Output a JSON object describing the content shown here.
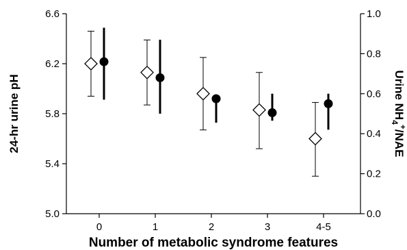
{
  "chart_data": {
    "type": "scatter",
    "xlabel": "Number of metabolic syndrome features",
    "ylabel": "24-hr urine pH",
    "ylabel2_parts": [
      "Urine NH",
      "4",
      "+",
      "/NAE"
    ],
    "categories": [
      "0",
      "1",
      "2",
      "3",
      "4-5"
    ],
    "ylim": [
      5.0,
      6.6
    ],
    "yticks": [
      "5.0",
      "5.4",
      "5.8",
      "6.2",
      "6.6"
    ],
    "y2lim": [
      0.0,
      1.0
    ],
    "y2ticks": [
      "0.0",
      "0.2",
      "0.4",
      "0.6",
      "0.8",
      "1.0"
    ],
    "grid": false,
    "series": [
      {
        "marker": "open-diamond",
        "axis": "left",
        "values": [
          6.2,
          6.13,
          5.96,
          5.83,
          5.6
        ],
        "err_low": [
          5.94,
          5.87,
          5.67,
          5.52,
          5.3
        ],
        "err_high": [
          6.46,
          6.39,
          6.25,
          6.13,
          5.89
        ]
      },
      {
        "marker": "filled-circle",
        "axis": "right",
        "values": [
          0.76,
          0.68,
          0.575,
          0.505,
          0.55
        ],
        "err_low": [
          0.57,
          0.5,
          0.455,
          0.465,
          0.42
        ],
        "err_high": [
          0.93,
          0.87,
          0.59,
          0.6,
          0.6
        ]
      }
    ]
  }
}
